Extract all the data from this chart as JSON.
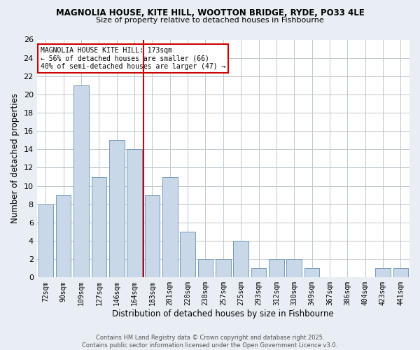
{
  "title1": "MAGNOLIA HOUSE, KITE HILL, WOOTTON BRIDGE, RYDE, PO33 4LE",
  "title2": "Size of property relative to detached houses in Fishbourne",
  "xlabel": "Distribution of detached houses by size in Fishbourne",
  "ylabel": "Number of detached properties",
  "categories": [
    "72sqm",
    "90sqm",
    "109sqm",
    "127sqm",
    "146sqm",
    "164sqm",
    "183sqm",
    "201sqm",
    "220sqm",
    "238sqm",
    "257sqm",
    "275sqm",
    "293sqm",
    "312sqm",
    "330sqm",
    "349sqm",
    "367sqm",
    "386sqm",
    "404sqm",
    "423sqm",
    "441sqm"
  ],
  "values": [
    8,
    9,
    21,
    11,
    15,
    14,
    9,
    11,
    5,
    2,
    2,
    4,
    1,
    2,
    2,
    1,
    0,
    0,
    0,
    1,
    1
  ],
  "bar_color": "#c8d8e8",
  "bar_edge_color": "#7799bb",
  "highlight_index": 5,
  "highlight_line_color": "#cc0000",
  "annotation_text": "MAGNOLIA HOUSE KITE HILL: 173sqm\n← 56% of detached houses are smaller (66)\n40% of semi-detached houses are larger (47) →",
  "annotation_box_color": "#ffffff",
  "annotation_box_edge": "#cc0000",
  "ylim": [
    0,
    26
  ],
  "yticks": [
    0,
    2,
    4,
    6,
    8,
    10,
    12,
    14,
    16,
    18,
    20,
    22,
    24,
    26
  ],
  "footer1": "Contains HM Land Registry data © Crown copyright and database right 2025.",
  "footer2": "Contains public sector information licensed under the Open Government Licence v3.0.",
  "bg_color": "#e8eef4",
  "plot_bg_color": "#ffffff"
}
